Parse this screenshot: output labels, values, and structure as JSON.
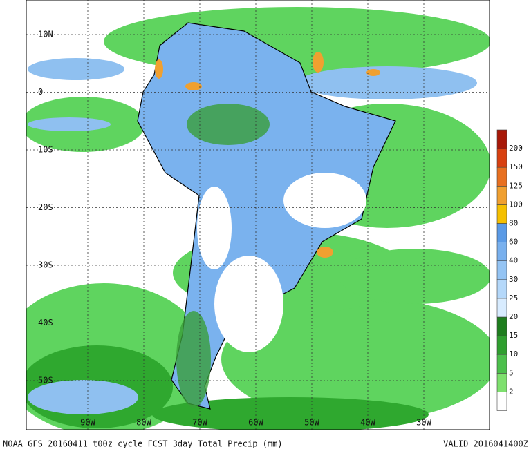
{
  "map": {
    "lat_labels": [
      "10N",
      "0",
      "10S",
      "20S",
      "30S",
      "40S",
      "50S"
    ],
    "lon_labels": [
      "90W",
      "80W",
      "70W",
      "60W",
      "50W",
      "40W",
      "30W"
    ],
    "colorbar": {
      "labels": [
        2,
        5,
        10,
        15,
        20,
        25,
        30,
        40,
        60,
        80,
        100,
        125,
        150,
        200
      ]
    },
    "footer": {
      "title": "NOAA GFS 20160411 t00z cycle FCST 3day Total Precip (mm)",
      "valid": "VALID 2016041400Z"
    }
  }
}
